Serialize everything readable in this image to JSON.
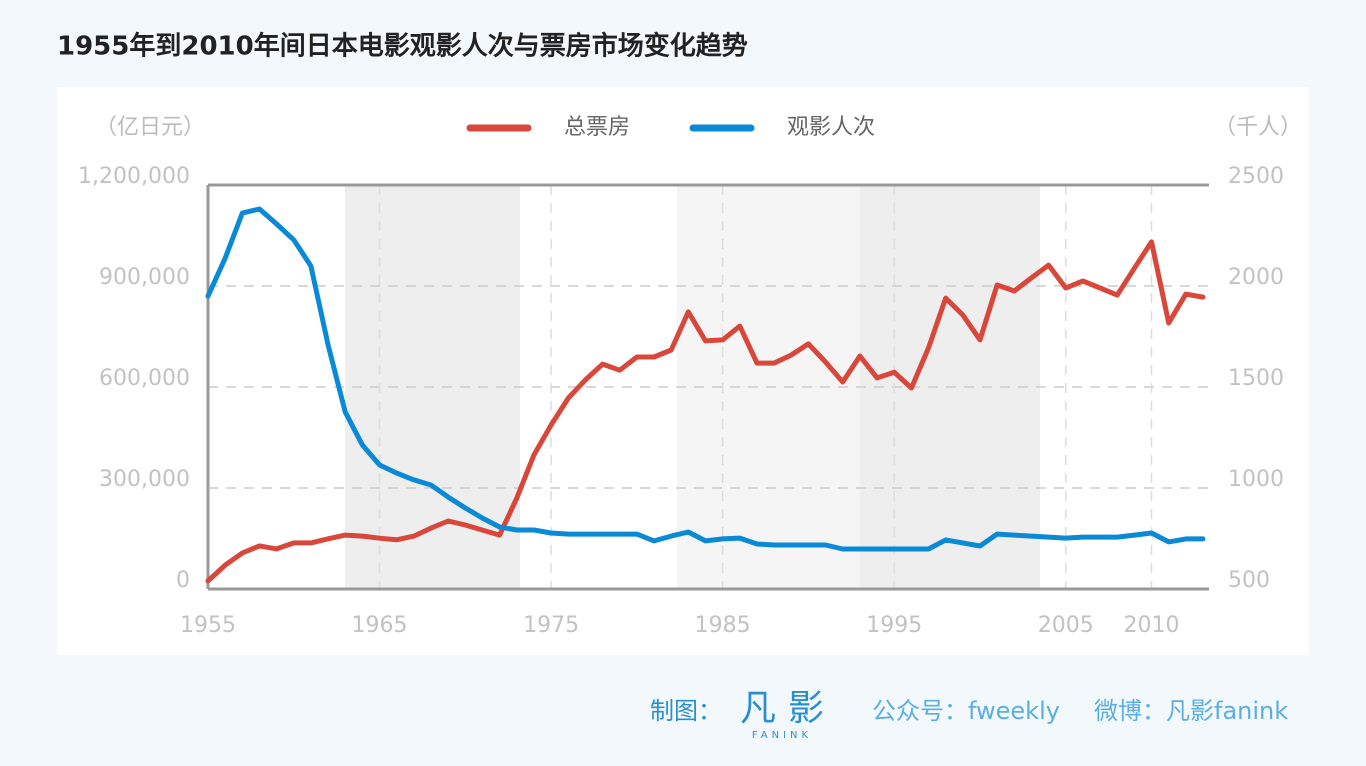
{
  "chart_data": {
    "type": "line",
    "title": "1955年到2010年间日本电影观影人次与票房市场变化趋势",
    "y_label": "（亿日元）",
    "y2_label": "（千人）",
    "x": [
      1955,
      1956,
      1957,
      1958,
      1959,
      1960,
      1961,
      1962,
      1963,
      1964,
      1965,
      1966,
      1967,
      1968,
      1969,
      1970,
      1971,
      1972,
      1973,
      1974,
      1975,
      1976,
      1977,
      1978,
      1979,
      1980,
      1981,
      1982,
      1983,
      1984,
      1985,
      1986,
      1987,
      1988,
      1989,
      1990,
      1991,
      1992,
      1993,
      1994,
      1995,
      1996,
      1997,
      1998,
      1999,
      2000,
      2001,
      2002,
      2003,
      2004,
      2005,
      2006,
      2007,
      2008,
      2009,
      2010,
      2011,
      2012,
      2013
    ],
    "series": [
      {
        "name": "总票房",
        "color": "#d9473a",
        "axis": "y",
        "values": [
          24000,
          71000,
          107000,
          128000,
          119000,
          137000,
          137000,
          149000,
          160000,
          157000,
          151000,
          146000,
          157000,
          181000,
          202000,
          190000,
          175000,
          160000,
          270000,
          398000,
          487000,
          567000,
          621000,
          668000,
          650000,
          689000,
          689000,
          710000,
          823000,
          737000,
          740000,
          781000,
          671000,
          671000,
          695000,
          728000,
          674000,
          615000,
          692000,
          627000,
          644000,
          597000,
          716000,
          864000,
          814000,
          740000,
          903000,
          885000,
          924000,
          962000,
          894000,
          915000,
          894000,
          873000,
          953000,
          1031000,
          790000,
          876000,
          867000
        ]
      },
      {
        "name": "观影人次",
        "color": "#0a8ad6",
        "axis": "y2",
        "values": [
          1950,
          2138,
          2361,
          2381,
          2307,
          2228,
          2099,
          1708,
          1376,
          1213,
          1114,
          1074,
          1040,
          1015,
          955,
          901,
          851,
          807,
          792,
          792,
          777,
          772,
          772,
          772,
          772,
          772,
          738,
          762,
          782,
          738,
          748,
          752,
          723,
          718,
          718,
          718,
          718,
          698,
          698,
          698,
          698,
          698,
          698,
          743,
          728,
          713,
          772,
          767,
          762,
          757,
          752,
          757,
          757,
          757,
          767,
          777,
          733,
          748,
          748
        ]
      }
    ],
    "xlim": [
      1955,
      2013
    ],
    "xticks": [
      1955,
      1965,
      1975,
      1985,
      1995,
      2005,
      2010
    ],
    "ylim": [
      0,
      1200000
    ],
    "yticks": [
      0,
      {
        "value": 300000,
        "label": "300,000"
      },
      {
        "value": 600000,
        "label": "600,000"
      },
      {
        "value": 900000,
        "label": "900,000"
      },
      {
        "value": 1200000,
        "label": "1,200,000"
      }
    ],
    "y2lim": [
      500,
      2500
    ],
    "y2ticks": [
      500,
      1000,
      1500,
      2000,
      2500
    ],
    "grid": true,
    "legend": "top"
  },
  "footer": {
    "credit": "制图：",
    "logo": "凡影",
    "logo_sub": "FANINK",
    "wechat": "公众号：fweekly",
    "weibo": "微博：凡影fanink"
  }
}
